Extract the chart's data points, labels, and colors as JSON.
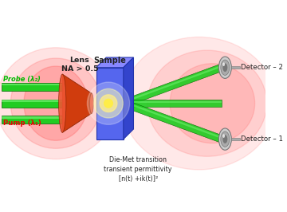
{
  "bg_color": "#ffffff",
  "lens_label": "Lens\nNA > 0.5",
  "sample_label": "Sample",
  "probe_label": "Probe (λ₂)",
  "pump_label": "Pump (λ₁)",
  "det2_label": "Detector – 2",
  "det1_label": "Detector – 1",
  "bottom_label": "Die-Met transition\ntransient permittivity\n[n(t) +ik(t)]²",
  "red_color": "#ff2020",
  "green_color": "#22cc22",
  "green_dark": "#006600",
  "green_hi": "#88ff88",
  "lens_color": "#cc3300",
  "lens_dark": "#882200",
  "lens_hi": "#ee5533",
  "sample_front": "#5566ee",
  "sample_top": "#8888ff",
  "sample_side": "#3344cc",
  "sample_edge": "#2233aa",
  "yellow": "#ffee44",
  "det_light": "#cccccc",
  "det_mid": "#aaaaaa",
  "det_dark": "#777777",
  "text_color": "#222222",
  "probe_color": "#00bb00",
  "pump_color": "#ee0000"
}
